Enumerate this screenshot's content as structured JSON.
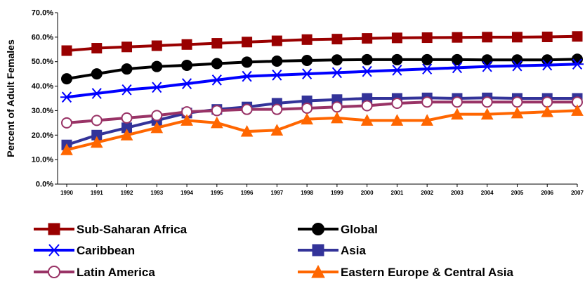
{
  "chart_data": {
    "type": "line",
    "title": "",
    "xlabel": "",
    "ylabel": "Percent of Adult Females",
    "ylim": [
      0,
      70
    ],
    "y_ticks": [
      "0.0%",
      "10.0%",
      "20.0%",
      "30.0%",
      "40.0%",
      "50.0%",
      "60.0%",
      "70.0%"
    ],
    "x": [
      "1990",
      "1991",
      "1992",
      "1993",
      "1994",
      "1995",
      "1996",
      "1997",
      "1998",
      "1999",
      "2000",
      "2001",
      "2002",
      "2003",
      "2004",
      "2005",
      "2006",
      "2007"
    ],
    "grid": false,
    "legend_position": "bottom",
    "series": [
      {
        "name": "Sub-Saharan Africa",
        "color": "#990000",
        "marker": "square",
        "values": [
          54.5,
          55.5,
          56.0,
          56.5,
          57.0,
          57.5,
          58.0,
          58.5,
          59.0,
          59.2,
          59.5,
          59.7,
          59.8,
          59.9,
          60.0,
          60.0,
          60.1,
          60.3
        ]
      },
      {
        "name": "Global",
        "color": "#000000",
        "marker": "circle",
        "values": [
          43.0,
          45.0,
          47.0,
          48.0,
          48.5,
          49.2,
          49.8,
          50.2,
          50.5,
          50.7,
          50.8,
          50.8,
          50.8,
          50.8,
          50.7,
          50.7,
          50.7,
          51.0
        ]
      },
      {
        "name": "Caribbean",
        "color": "#0000FF",
        "marker": "asterisk",
        "values": [
          35.5,
          37.0,
          38.5,
          39.5,
          41.0,
          42.5,
          44.0,
          44.5,
          45.0,
          45.5,
          46.0,
          46.5,
          47.0,
          47.5,
          48.0,
          48.3,
          48.6,
          49.0
        ]
      },
      {
        "name": "Asia",
        "color": "#333399",
        "marker": "square",
        "values": [
          16.0,
          20.0,
          23.0,
          26.0,
          29.0,
          30.5,
          31.5,
          33.0,
          34.0,
          34.5,
          35.0,
          35.0,
          35.2,
          35.0,
          35.2,
          35.0,
          35.0,
          35.0
        ]
      },
      {
        "name": "Latin America",
        "color": "#993366",
        "marker": "open-circle",
        "values": [
          25.0,
          26.0,
          27.0,
          28.0,
          29.5,
          30.0,
          30.5,
          30.5,
          31.0,
          31.5,
          32.0,
          33.0,
          33.5,
          33.5,
          33.5,
          33.5,
          33.5,
          33.5
        ]
      },
      {
        "name": "Eastern Europe & Central Asia",
        "color": "#FF6600",
        "marker": "triangle",
        "values": [
          14.0,
          17.0,
          20.0,
          23.0,
          26.0,
          25.0,
          21.5,
          22.0,
          26.5,
          27.0,
          26.0,
          26.0,
          26.0,
          28.5,
          28.5,
          29.0,
          29.5,
          30.0
        ]
      }
    ]
  }
}
